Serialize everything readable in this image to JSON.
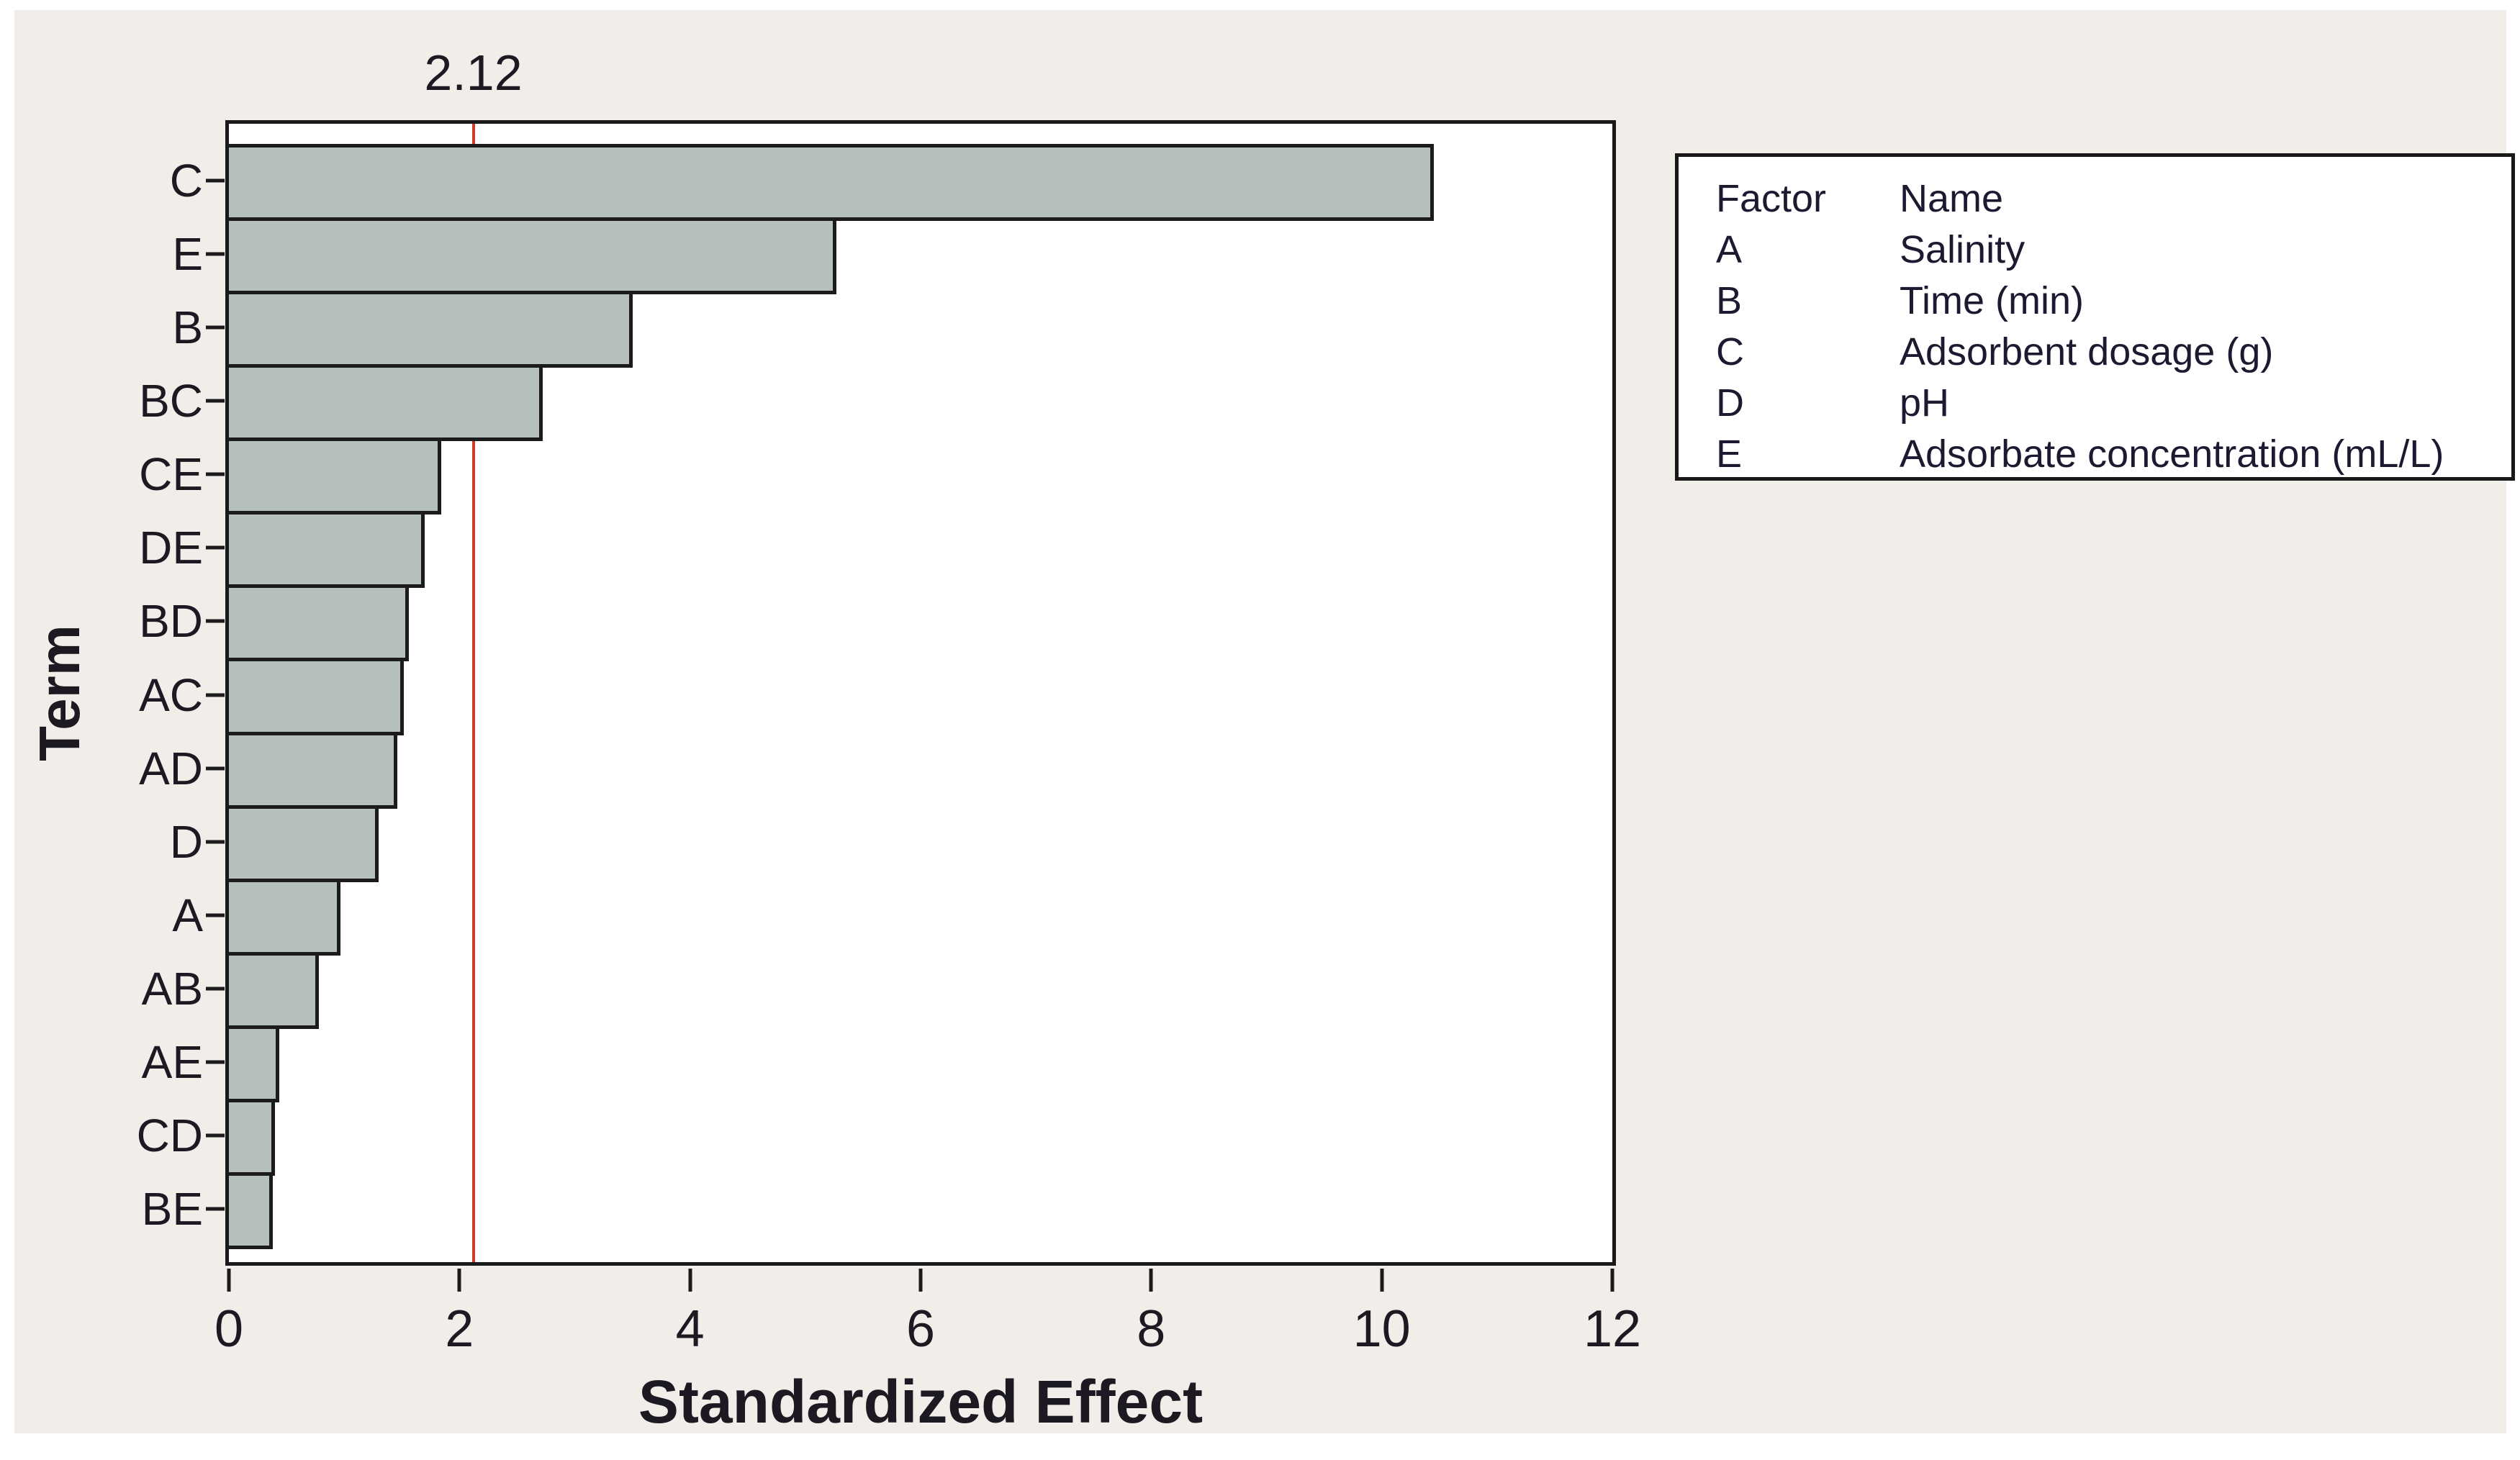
{
  "figure": {
    "x_axis_title": "Standardized Effect",
    "y_axis_title": "Term",
    "reference_line_label": "2.12"
  },
  "chart_data": {
    "type": "bar",
    "orientation": "horizontal",
    "title": "",
    "xlabel": "Standardized Effect",
    "ylabel": "Term",
    "xlim": [
      0,
      12
    ],
    "x_ticks": [
      0,
      2,
      4,
      6,
      8,
      10,
      12
    ],
    "grid": false,
    "legend_position": "top-right",
    "categories": [
      "C",
      "E",
      "B",
      "BC",
      "CE",
      "DE",
      "BD",
      "AC",
      "AD",
      "D",
      "A",
      "AB",
      "AE",
      "CD",
      "BE"
    ],
    "values": [
      10.45,
      5.27,
      3.5,
      2.72,
      1.84,
      1.7,
      1.56,
      1.52,
      1.46,
      1.3,
      0.97,
      0.78,
      0.44,
      0.4,
      0.38
    ],
    "reference_line": {
      "value": 2.12,
      "label": "2.12",
      "color": "#d23b2c"
    },
    "bar_color": "#b5bfbd",
    "bar_border_color": "#1b1b1b"
  },
  "legend": {
    "header": {
      "factor": "Factor",
      "name": "Name"
    },
    "rows": [
      {
        "factor": "A",
        "name": "Salinity"
      },
      {
        "factor": "B",
        "name": "Time (min)"
      },
      {
        "factor": "C",
        "name": "Adsorbent dosage (g)"
      },
      {
        "factor": "D",
        "name": "pH"
      },
      {
        "factor": "E",
        "name": "Adsorbate concentration (mL/L)"
      }
    ]
  },
  "colors": {
    "page_background": "#ffffff",
    "figure_background": "#f1eee9",
    "plot_background": "#ffffff",
    "text": "#1c1923",
    "legend_text": "#1d1930"
  }
}
